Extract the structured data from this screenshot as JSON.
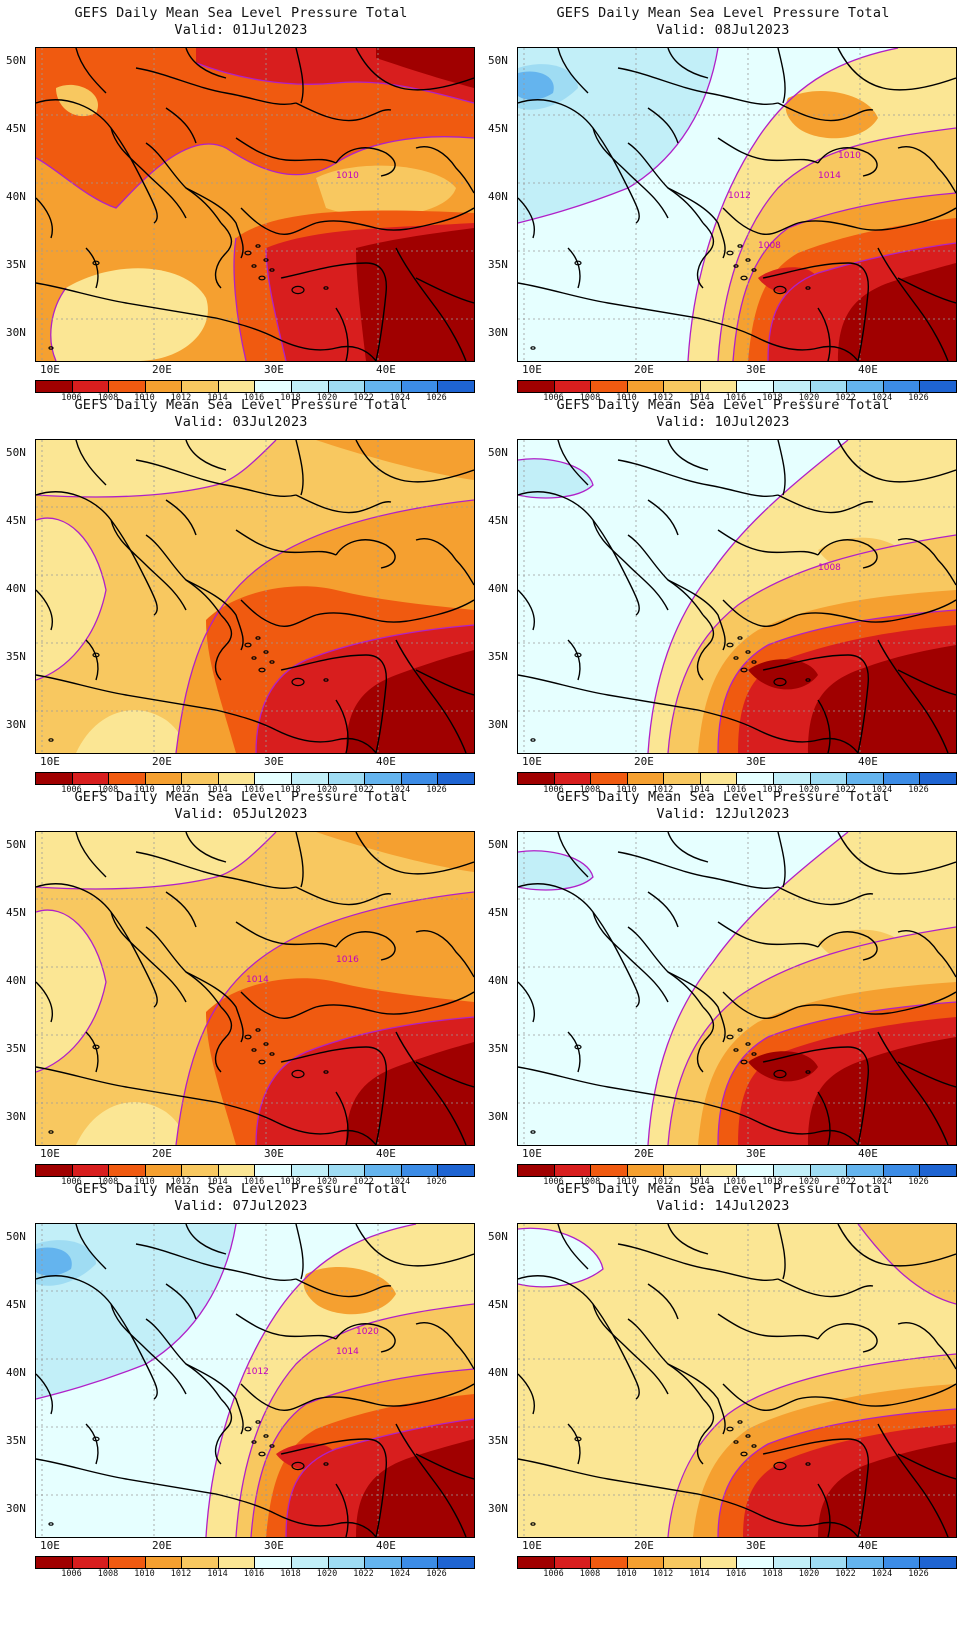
{
  "panels": [
    {
      "title": "GEFS Daily Mean Sea Level Pressure Total",
      "valid": "Valid: 01Jul2023",
      "contour_labels": [
        "1010"
      ],
      "regime": "low"
    },
    {
      "title": "GEFS Daily Mean Sea Level Pressure Total",
      "valid": "Valid: 08Jul2023",
      "contour_labels": [
        "1014",
        "1012",
        "1010",
        "1008"
      ],
      "regime": "high-west"
    },
    {
      "title": "GEFS Daily Mean Sea Level Pressure Total",
      "valid": "Valid: 03Jul2023",
      "contour_labels": [],
      "regime": "mid"
    },
    {
      "title": "GEFS Daily Mean Sea Level Pressure Total",
      "valid": "Valid: 10Jul2023",
      "contour_labels": [
        "1008"
      ],
      "regime": "high-mid"
    },
    {
      "title": "GEFS Daily Mean Sea Level Pressure Total",
      "valid": "Valid: 05Jul2023",
      "contour_labels": [
        "1016",
        "1014"
      ],
      "regime": "mid"
    },
    {
      "title": "GEFS Daily Mean Sea Level Pressure Total",
      "valid": "Valid: 12Jul2023",
      "contour_labels": [],
      "regime": "high-mid"
    },
    {
      "title": "GEFS Daily Mean Sea Level Pressure Total",
      "valid": "Valid: 07Jul2023",
      "contour_labels": [
        "1014",
        "1012",
        "1020"
      ],
      "regime": "high-west"
    },
    {
      "title": "GEFS Daily Mean Sea Level Pressure Total",
      "valid": "Valid: 14Jul2023",
      "contour_labels": [],
      "regime": "mid-light"
    }
  ],
  "lat_labels": [
    "50N",
    "45N",
    "40N",
    "35N",
    "30N"
  ],
  "lon_labels": [
    "10E",
    "20E",
    "30E",
    "40E"
  ],
  "colorbar": {
    "ticks": [
      "1006",
      "1008",
      "1010",
      "1012",
      "1014",
      "1016",
      "1018",
      "1020",
      "1022",
      "1024",
      "1026"
    ],
    "colors": [
      "#a00000",
      "#d81e1e",
      "#f05a10",
      "#f5a030",
      "#f8c860",
      "#fbe694",
      "#e6ffff",
      "#c2eff8",
      "#9fdcf3",
      "#64b4ee",
      "#3c8ce6",
      "#1e64d2"
    ]
  },
  "contour_color": "#b020c8",
  "coast_color": "#000000"
}
